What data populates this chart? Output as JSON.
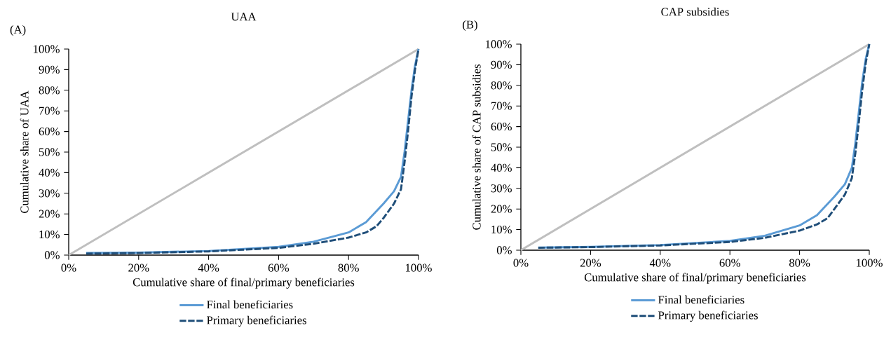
{
  "chart_data": [
    {
      "type": "line",
      "title": "UAA",
      "annotations": [
        "(A)"
      ],
      "xlabel": "Cumulative share of final/primary beneficiaries",
      "ylabel": "Cumulative share of UAA",
      "legend": "bottom",
      "xlim": [
        0,
        100
      ],
      "ylim": [
        0,
        100
      ],
      "xticks": [
        {
          "value": 0,
          "label": "0%"
        },
        {
          "value": 20,
          "label": "20%"
        },
        {
          "value": 40,
          "label": "40%"
        },
        {
          "value": 60,
          "label": "60%"
        },
        {
          "value": 80,
          "label": "80%"
        },
        {
          "value": 100,
          "label": "100%"
        }
      ],
      "yticks": [
        {
          "value": 0,
          "label": "0%"
        },
        {
          "value": 10,
          "label": "10%"
        },
        {
          "value": 20,
          "label": "20%"
        },
        {
          "value": 30,
          "label": "30%"
        },
        {
          "value": 40,
          "label": "40%"
        },
        {
          "value": 50,
          "label": "50%"
        },
        {
          "value": 60,
          "label": "60%"
        },
        {
          "value": 70,
          "label": "70%"
        },
        {
          "value": 80,
          "label": "80%"
        },
        {
          "value": 90,
          "label": "90%"
        },
        {
          "value": 100,
          "label": "100%"
        }
      ],
      "series": [
        {
          "color": "#bfbfbf",
          "x": [
            0,
            100
          ],
          "values": [
            0,
            100
          ]
        },
        {
          "name": "Final beneficiaries",
          "color": "#5b9bd5",
          "line_style": "solid",
          "x": [
            5,
            20,
            40,
            60,
            70,
            80,
            85,
            90,
            93,
            95,
            96,
            97,
            98,
            99,
            100
          ],
          "values": [
            1,
            1.2,
            2,
            4,
            6.5,
            11,
            16,
            25,
            31,
            38,
            50,
            65,
            80,
            92,
            100
          ]
        },
        {
          "name": "Primary beneficiaries",
          "color": "#1f4e79",
          "line_style": "dashed",
          "x": [
            5,
            20,
            40,
            60,
            70,
            80,
            85,
            88,
            90,
            93,
            95,
            96,
            97,
            98,
            99,
            100
          ],
          "values": [
            0.7,
            1,
            1.8,
            3.5,
            5.5,
            8.5,
            11,
            14,
            18,
            25,
            32,
            45,
            60,
            77,
            90,
            100
          ]
        }
      ]
    },
    {
      "type": "line",
      "title": "CAP subsidies",
      "annotations": [
        "(B)"
      ],
      "xlabel": "Cumulative share of final/primary beneficiaries",
      "ylabel": "Cumulative share of CAP subsidies",
      "legend": "bottom",
      "xlim": [
        0,
        100
      ],
      "ylim": [
        0,
        100
      ],
      "xticks": [
        {
          "value": 0,
          "label": "0%"
        },
        {
          "value": 20,
          "label": "20%"
        },
        {
          "value": 40,
          "label": "40%"
        },
        {
          "value": 60,
          "label": "60%"
        },
        {
          "value": 80,
          "label": "80%"
        },
        {
          "value": 100,
          "label": "100%"
        }
      ],
      "yticks": [
        {
          "value": 0,
          "label": "0%"
        },
        {
          "value": 10,
          "label": "10%"
        },
        {
          "value": 20,
          "label": "20%"
        },
        {
          "value": 30,
          "label": "30%"
        },
        {
          "value": 40,
          "label": "40%"
        },
        {
          "value": 50,
          "label": "50%"
        },
        {
          "value": 60,
          "label": "60%"
        },
        {
          "value": 70,
          "label": "70%"
        },
        {
          "value": 80,
          "label": "80%"
        },
        {
          "value": 90,
          "label": "90%"
        },
        {
          "value": 100,
          "label": "100%"
        }
      ],
      "series": [
        {
          "color": "#bfbfbf",
          "x": [
            0,
            100
          ],
          "values": [
            0,
            100
          ]
        },
        {
          "name": "Final beneficiaries",
          "color": "#5b9bd5",
          "line_style": "solid",
          "x": [
            5,
            20,
            40,
            60,
            70,
            80,
            85,
            90,
            93,
            95,
            96,
            97,
            98,
            99,
            100
          ],
          "values": [
            1.3,
            1.6,
            2.5,
            4.5,
            7,
            12,
            17,
            26,
            32,
            40,
            52,
            67,
            82,
            93,
            100
          ]
        },
        {
          "name": "Primary beneficiaries",
          "color": "#1f4e79",
          "line_style": "dashed",
          "x": [
            5,
            20,
            40,
            60,
            70,
            80,
            85,
            88,
            90,
            93,
            95,
            96,
            97,
            98,
            99,
            100
          ],
          "values": [
            1.2,
            1.5,
            2.3,
            4,
            6,
            9.5,
            12.5,
            15.5,
            20,
            27,
            35,
            47,
            62,
            78,
            91,
            100
          ]
        }
      ]
    }
  ]
}
